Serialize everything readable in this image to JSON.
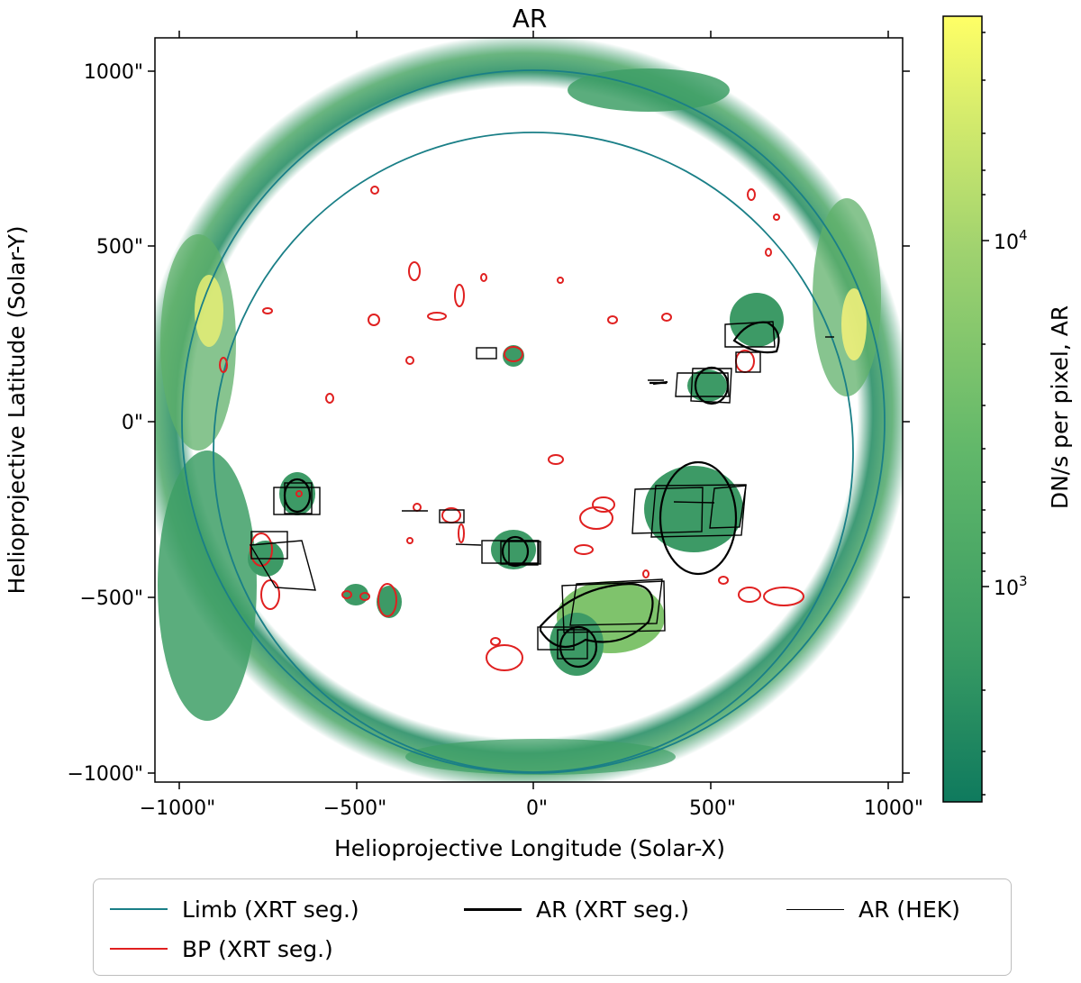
{
  "title": "AR",
  "x_axis": {
    "label": "Helioprojective Longitude (Solar-X)",
    "ticks": [
      "−1000\"",
      "−500\"",
      "0\"",
      "500\"",
      "1000\""
    ],
    "tick_values": [
      -1000,
      -500,
      0,
      500,
      1000
    ]
  },
  "y_axis": {
    "label": "Helioprojective Latitude (Solar-Y)",
    "ticks": [
      "1000\"",
      "500\"",
      "0\"",
      "−500\"",
      "−1000\""
    ],
    "tick_values": [
      1000,
      500,
      0,
      -500,
      -1000
    ]
  },
  "colorbar": {
    "label": "DN/s per pixel, AR",
    "ticks": [
      "10",
      "10"
    ],
    "tick_exponents": [
      "4",
      "3"
    ],
    "scale": "log",
    "colors": [
      "#0f7a5e",
      "#3a9c63",
      "#62b86a",
      "#9fd26f",
      "#d7ec6c",
      "#ffff66"
    ]
  },
  "legend": {
    "items": [
      {
        "label": "Limb (XRT seg.)",
        "color": "#1a7f87"
      },
      {
        "label": "AR (XRT seg.)",
        "color": "#000000"
      },
      {
        "label": "AR (HEK)",
        "color": "#000000"
      },
      {
        "label": "BP (XRT seg.)",
        "color": "#e02020"
      }
    ]
  },
  "colors": {
    "limb": "#1a7f87",
    "bp": "#e02020",
    "ar": "#000000",
    "emission_low": "#2a8f67",
    "emission_high": "#f4f46a"
  }
}
